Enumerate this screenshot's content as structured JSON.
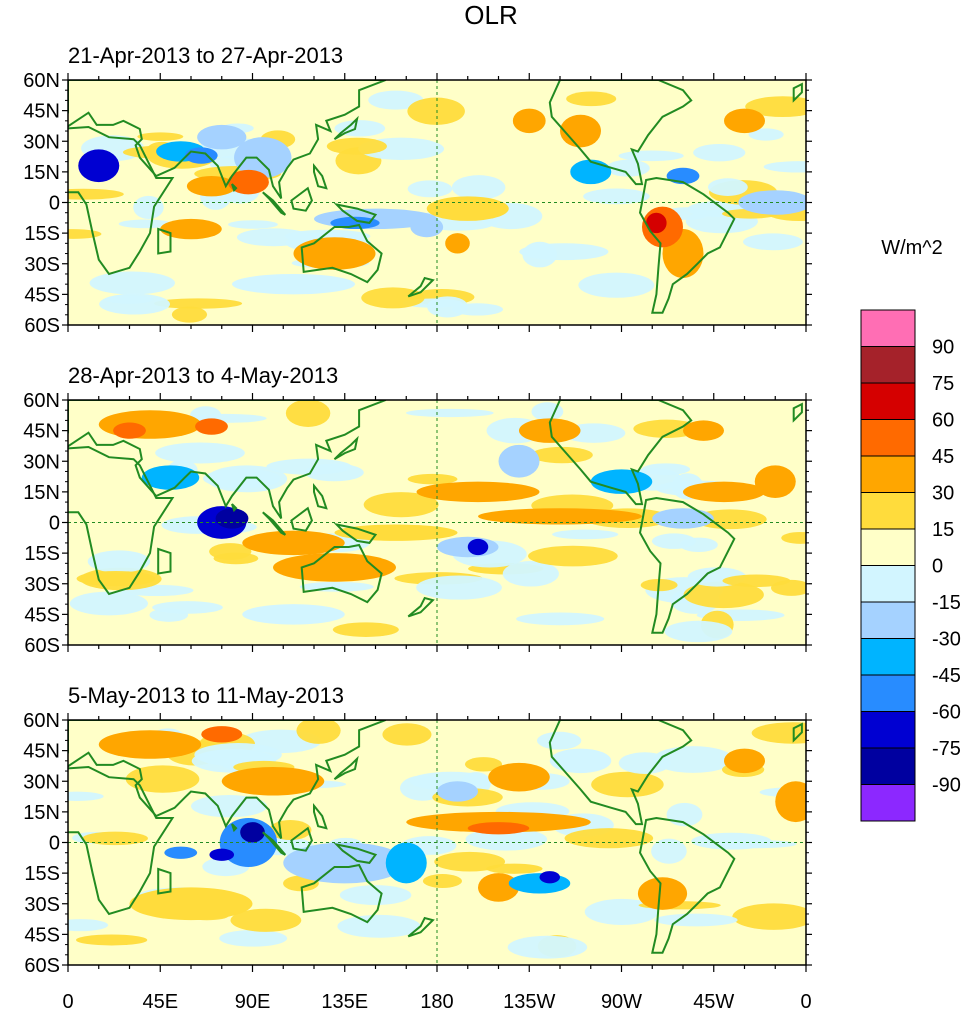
{
  "chart_data": {
    "type": "heatmap",
    "title": "OLR",
    "units_label": "W/m^2",
    "x_tick_labels": [
      "0",
      "45E",
      "90E",
      "135E",
      "180",
      "135W",
      "90W",
      "45W",
      "0"
    ],
    "x_tick_lon": [
      0,
      45,
      90,
      135,
      180,
      225,
      270,
      315,
      360
    ],
    "y_tick_labels": [
      "60N",
      "45N",
      "30N",
      "15N",
      "0",
      "15S",
      "30S",
      "45S",
      "60S"
    ],
    "y_tick_lat": [
      60,
      45,
      30,
      15,
      0,
      -15,
      -30,
      -45,
      -60
    ],
    "xlim": [
      0,
      360
    ],
    "ylim": [
      -60,
      60
    ],
    "panels": [
      {
        "title": "21-Apr-2013 to 27-Apr-2013",
        "anomalies": [
          {
            "lon": 15,
            "lat": 18,
            "rx": 10,
            "ry": 8,
            "value": -75
          },
          {
            "lon": 55,
            "lat": 25,
            "rx": 12,
            "ry": 5,
            "value": -45
          },
          {
            "lon": 65,
            "lat": 23,
            "rx": 8,
            "ry": 4,
            "value": -60
          },
          {
            "lon": 75,
            "lat": 32,
            "rx": 12,
            "ry": 6,
            "value": -30
          },
          {
            "lon": 95,
            "lat": 22,
            "rx": 14,
            "ry": 10,
            "value": -30
          },
          {
            "lon": 70,
            "lat": 8,
            "rx": 12,
            "ry": 5,
            "value": 30
          },
          {
            "lon": 88,
            "lat": 10,
            "rx": 10,
            "ry": 6,
            "value": 45
          },
          {
            "lon": 150,
            "lat": -8,
            "rx": 30,
            "ry": 5,
            "value": -30
          },
          {
            "lon": 140,
            "lat": -10,
            "rx": 12,
            "ry": 3,
            "value": -60
          },
          {
            "lon": 175,
            "lat": -12,
            "rx": 8,
            "ry": 5,
            "value": -30
          },
          {
            "lon": 195,
            "lat": -3,
            "rx": 20,
            "ry": 6,
            "value": 15
          },
          {
            "lon": 190,
            "lat": -20,
            "rx": 6,
            "ry": 5,
            "value": 30
          },
          {
            "lon": 225,
            "lat": 40,
            "rx": 8,
            "ry": 6,
            "value": 30
          },
          {
            "lon": 250,
            "lat": 35,
            "rx": 10,
            "ry": 8,
            "value": 30
          },
          {
            "lon": 255,
            "lat": 15,
            "rx": 10,
            "ry": 6,
            "value": -45
          },
          {
            "lon": 300,
            "lat": 13,
            "rx": 8,
            "ry": 4,
            "value": -60
          },
          {
            "lon": 290,
            "lat": -12,
            "rx": 10,
            "ry": 10,
            "value": 45
          },
          {
            "lon": 287,
            "lat": -10,
            "rx": 5,
            "ry": 5,
            "value": 60
          },
          {
            "lon": 300,
            "lat": -25,
            "rx": 10,
            "ry": 12,
            "value": 30
          },
          {
            "lon": 330,
            "lat": 40,
            "rx": 10,
            "ry": 6,
            "value": 30
          },
          {
            "lon": 345,
            "lat": 0,
            "rx": 18,
            "ry": 6,
            "value": -30
          },
          {
            "lon": 110,
            "lat": -40,
            "rx": 30,
            "ry": 5,
            "value": -15
          },
          {
            "lon": 60,
            "lat": -13,
            "rx": 15,
            "ry": 5,
            "value": 30
          },
          {
            "lon": 130,
            "lat": -25,
            "rx": 20,
            "ry": 8,
            "value": 30
          }
        ]
      },
      {
        "title": "28-Apr-2013 to 4-May-2013",
        "anomalies": [
          {
            "lon": 40,
            "lat": 48,
            "rx": 25,
            "ry": 7,
            "value": 30
          },
          {
            "lon": 30,
            "lat": 45,
            "rx": 8,
            "ry": 4,
            "value": 45
          },
          {
            "lon": 70,
            "lat": 47,
            "rx": 8,
            "ry": 4,
            "value": 45
          },
          {
            "lon": 50,
            "lat": 22,
            "rx": 14,
            "ry": 6,
            "value": -45
          },
          {
            "lon": 75,
            "lat": 0,
            "rx": 12,
            "ry": 8,
            "value": -75
          },
          {
            "lon": 80,
            "lat": 2,
            "rx": 8,
            "ry": 5,
            "value": -90
          },
          {
            "lon": 110,
            "lat": -10,
            "rx": 25,
            "ry": 6,
            "value": 30
          },
          {
            "lon": 130,
            "lat": -22,
            "rx": 30,
            "ry": 7,
            "value": 30
          },
          {
            "lon": 160,
            "lat": -5,
            "rx": 30,
            "ry": 4,
            "value": 15
          },
          {
            "lon": 195,
            "lat": -12,
            "rx": 15,
            "ry": 5,
            "value": -30
          },
          {
            "lon": 200,
            "lat": -12,
            "rx": 5,
            "ry": 4,
            "value": -75
          },
          {
            "lon": 220,
            "lat": 30,
            "rx": 10,
            "ry": 8,
            "value": -30
          },
          {
            "lon": 200,
            "lat": 15,
            "rx": 30,
            "ry": 5,
            "value": 30
          },
          {
            "lon": 270,
            "lat": 20,
            "rx": 15,
            "ry": 6,
            "value": -45
          },
          {
            "lon": 240,
            "lat": 3,
            "rx": 40,
            "ry": 4,
            "value": 30
          },
          {
            "lon": 235,
            "lat": 45,
            "rx": 15,
            "ry": 6,
            "value": 30
          },
          {
            "lon": 320,
            "lat": 15,
            "rx": 20,
            "ry": 5,
            "value": 30
          },
          {
            "lon": 345,
            "lat": 20,
            "rx": 10,
            "ry": 8,
            "value": 30
          },
          {
            "lon": 300,
            "lat": 2,
            "rx": 15,
            "ry": 5,
            "value": -30
          },
          {
            "lon": 310,
            "lat": 45,
            "rx": 10,
            "ry": 5,
            "value": 30
          },
          {
            "lon": 110,
            "lat": -45,
            "rx": 25,
            "ry": 5,
            "value": -15
          }
        ]
      },
      {
        "title": "5-May-2013 to 11-May-2013",
        "anomalies": [
          {
            "lon": 40,
            "lat": 48,
            "rx": 25,
            "ry": 7,
            "value": 30
          },
          {
            "lon": 75,
            "lat": 53,
            "rx": 10,
            "ry": 4,
            "value": 45
          },
          {
            "lon": 100,
            "lat": 30,
            "rx": 25,
            "ry": 7,
            "value": 30
          },
          {
            "lon": 88,
            "lat": 0,
            "rx": 14,
            "ry": 12,
            "value": -60
          },
          {
            "lon": 90,
            "lat": 5,
            "rx": 6,
            "ry": 5,
            "value": -90
          },
          {
            "lon": 55,
            "lat": -5,
            "rx": 8,
            "ry": 3,
            "value": -60
          },
          {
            "lon": 75,
            "lat": -6,
            "rx": 6,
            "ry": 3,
            "value": -75
          },
          {
            "lon": 135,
            "lat": -10,
            "rx": 30,
            "ry": 10,
            "value": -30
          },
          {
            "lon": 165,
            "lat": -10,
            "rx": 10,
            "ry": 10,
            "value": -45
          },
          {
            "lon": 210,
            "lat": 10,
            "rx": 45,
            "ry": 5,
            "value": 30
          },
          {
            "lon": 210,
            "lat": 7,
            "rx": 15,
            "ry": 3,
            "value": 45
          },
          {
            "lon": 220,
            "lat": 32,
            "rx": 15,
            "ry": 7,
            "value": 30
          },
          {
            "lon": 210,
            "lat": -22,
            "rx": 10,
            "ry": 7,
            "value": 30
          },
          {
            "lon": 230,
            "lat": -20,
            "rx": 15,
            "ry": 5,
            "value": -45
          },
          {
            "lon": 235,
            "lat": -17,
            "rx": 5,
            "ry": 3,
            "value": -75
          },
          {
            "lon": 190,
            "lat": 25,
            "rx": 10,
            "ry": 5,
            "value": -30
          },
          {
            "lon": 330,
            "lat": 40,
            "rx": 10,
            "ry": 6,
            "value": 30
          },
          {
            "lon": 355,
            "lat": 20,
            "rx": 10,
            "ry": 10,
            "value": 30
          },
          {
            "lon": 250,
            "lat": 40,
            "rx": 15,
            "ry": 6,
            "value": -15
          },
          {
            "lon": 60,
            "lat": -30,
            "rx": 30,
            "ry": 8,
            "value": 15
          },
          {
            "lon": 290,
            "lat": -25,
            "rx": 12,
            "ry": 8,
            "value": 30
          }
        ]
      }
    ],
    "colorbar": {
      "levels": [
        90,
        75,
        60,
        45,
        30,
        15,
        0,
        -15,
        -30,
        -45,
        -60,
        -75,
        -90
      ],
      "labels": [
        "90",
        "75",
        "60",
        "45",
        "30",
        "15",
        "0",
        "-15",
        "-30",
        "-45",
        "-60",
        "-75",
        "-90"
      ],
      "colors": [
        "#ff6eb4",
        "#a5222a",
        "#d50000",
        "#ff6a00",
        "#ffa600",
        "#ffdc3c",
        "#ffffc8",
        "#d2f5ff",
        "#a5d2ff",
        "#00b4ff",
        "#288cff",
        "#0000d2",
        "#0000a0",
        "#8c28ff"
      ]
    },
    "coast_color": "#228b22",
    "grid_color": "#228b22"
  }
}
